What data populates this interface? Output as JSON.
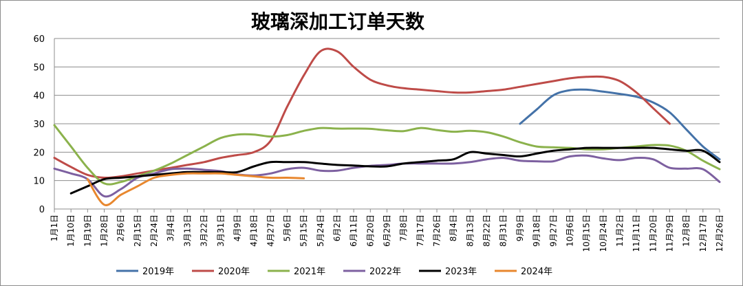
{
  "chart_data": {
    "type": "line",
    "title": "玻璃深加工订单天数",
    "xlabel": "",
    "ylabel": "",
    "ylim": [
      0,
      60
    ],
    "yticks": [
      0,
      10,
      20,
      30,
      40,
      50,
      60
    ],
    "grid": "horizontal",
    "legend_position": "bottom",
    "categories": [
      "1月1日",
      "1月10日",
      "1月19日",
      "1月28日",
      "2月6日",
      "2月15日",
      "2月24日",
      "3月4日",
      "3月13日",
      "3月22日",
      "3月31日",
      "4月9日",
      "4月18日",
      "4月27日",
      "5月6日",
      "5月15日",
      "5月24日",
      "6月2日",
      "6月11日",
      "6月20日",
      "6月29日",
      "7月8日",
      "7月17日",
      "7月26日",
      "8月4日",
      "8月13日",
      "8月22日",
      "8月31日",
      "9月9日",
      "9月18日",
      "9月27日",
      "10月6日",
      "10月15日",
      "10月24日",
      "11月2日",
      "11月11日",
      "11月20日",
      "11月29日",
      "12月8日",
      "12月17日",
      "12月26日"
    ],
    "series": [
      {
        "name": "2019年",
        "color": "#4472A8",
        "values": [
          null,
          null,
          null,
          null,
          null,
          null,
          null,
          null,
          null,
          null,
          null,
          null,
          null,
          null,
          null,
          null,
          null,
          null,
          null,
          null,
          null,
          null,
          null,
          null,
          null,
          null,
          null,
          null,
          30,
          35,
          40,
          41.8,
          42,
          41.3,
          40.5,
          39.5,
          37.5,
          34,
          28,
          22,
          17.5
        ]
      },
      {
        "name": "2020年",
        "color": "#BE4B48",
        "values": [
          18,
          14.8,
          12,
          11,
          11.5,
          12.5,
          13.5,
          14.5,
          15.5,
          16.5,
          18,
          19,
          20,
          24,
          36,
          47,
          55.5,
          55.5,
          50,
          45.5,
          43.5,
          42.5,
          42,
          41.5,
          41,
          41,
          41.5,
          42,
          43,
          44,
          45,
          46,
          46.5,
          46.5,
          45,
          41,
          35.5,
          30,
          null,
          null,
          null
        ]
      },
      {
        "name": "2021年",
        "color": "#8BB24C",
        "values": [
          29.5,
          22,
          14.5,
          9,
          9.5,
          11.5,
          13.5,
          16,
          19,
          22,
          25,
          26.2,
          26.2,
          25.5,
          26,
          27.5,
          28.5,
          28.3,
          28.3,
          28.2,
          27.7,
          27.4,
          28.5,
          27.8,
          27.2,
          27.5,
          27,
          25.5,
          23.5,
          22,
          21.7,
          21.5,
          21,
          21,
          21.5,
          22,
          22.5,
          22.3,
          20.5,
          17,
          14
        ]
      },
      {
        "name": "2022年",
        "color": "#7D60A0",
        "values": [
          14.2,
          12.5,
          10.5,
          4.5,
          7,
          11,
          12.5,
          14,
          14.2,
          13.8,
          13.3,
          12.2,
          11.8,
          12.5,
          14,
          14.5,
          13.5,
          13.5,
          14.5,
          15.2,
          15.5,
          16,
          16,
          16,
          16,
          16.5,
          17.5,
          18,
          17,
          16.8,
          16.8,
          18.5,
          18.8,
          17.8,
          17.2,
          18,
          17.5,
          14.5,
          14.2,
          14,
          9.5
        ]
      },
      {
        "name": "2023年",
        "color": "#000000",
        "values": [
          null,
          5.5,
          8,
          10.5,
          11,
          11.5,
          12,
          12.5,
          13,
          13,
          13,
          13,
          15,
          16.5,
          16.5,
          16.5,
          16,
          15.5,
          15.3,
          15,
          15,
          16,
          16.5,
          17,
          17.5,
          20,
          19.5,
          19,
          18.5,
          19.5,
          20.5,
          21,
          21.5,
          21.5,
          21.5,
          21.5,
          21.5,
          21,
          20.5,
          20.5,
          16.5
        ]
      },
      {
        "name": "2024年",
        "color": "#E8872E",
        "values": [
          null,
          null,
          10.5,
          1.5,
          5,
          8,
          11,
          12,
          12.5,
          12.5,
          12.5,
          12,
          11.5,
          11,
          11,
          10.8,
          null,
          null,
          null,
          null,
          null,
          null,
          null,
          null,
          null,
          null,
          null,
          null,
          null,
          null,
          null,
          null,
          null,
          null,
          null,
          null,
          null,
          null,
          null,
          null,
          null
        ]
      }
    ]
  }
}
